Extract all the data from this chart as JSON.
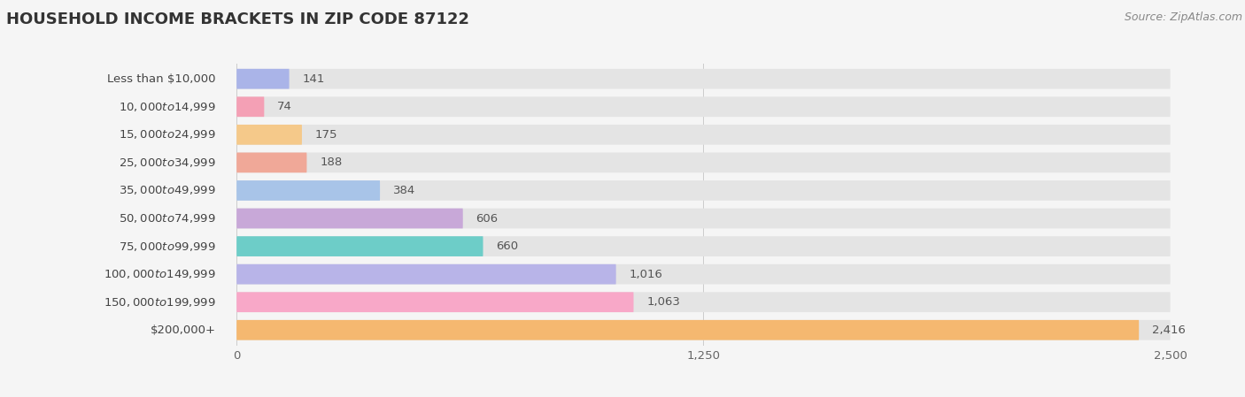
{
  "title": "HOUSEHOLD INCOME BRACKETS IN ZIP CODE 87122",
  "source": "Source: ZipAtlas.com",
  "categories": [
    "Less than $10,000",
    "$10,000 to $14,999",
    "$15,000 to $24,999",
    "$25,000 to $34,999",
    "$35,000 to $49,999",
    "$50,000 to $74,999",
    "$75,000 to $99,999",
    "$100,000 to $149,999",
    "$150,000 to $199,999",
    "$200,000+"
  ],
  "values": [
    141,
    74,
    175,
    188,
    384,
    606,
    660,
    1016,
    1063,
    2416
  ],
  "bar_colors": [
    "#aab4e8",
    "#f4a0b5",
    "#f5c98a",
    "#f0a898",
    "#a8c4e8",
    "#c8a8d8",
    "#6dcdc8",
    "#b8b4e8",
    "#f8a8c8",
    "#f5b870"
  ],
  "bg_color": "#f5f5f5",
  "bar_bg_color": "#e4e4e4",
  "xlim_max": 2500,
  "xticks": [
    0,
    1250,
    2500
  ],
  "title_fontsize": 13,
  "label_fontsize": 9.5,
  "value_fontsize": 9.5,
  "source_fontsize": 9,
  "bar_height": 0.72
}
